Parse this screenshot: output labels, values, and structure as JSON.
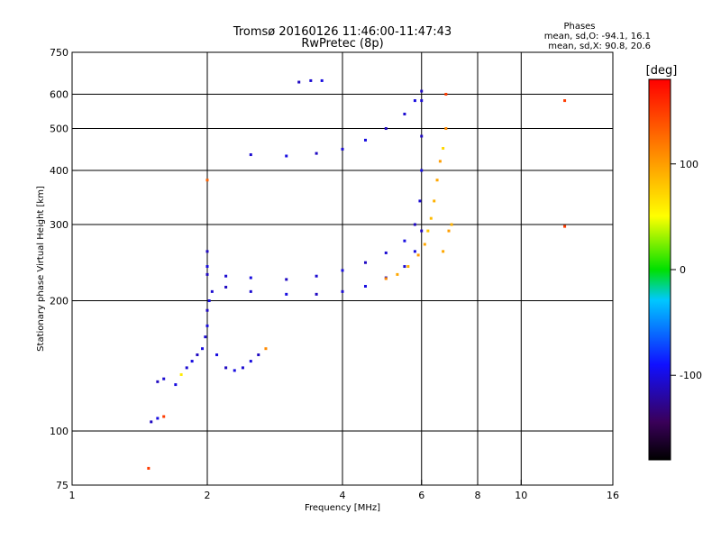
{
  "chart_data": {
    "type": "scatter",
    "title": "Tromsø 20160126 11:46:00-11:47:43",
    "subtitle": "RwPretec (8p)",
    "xlabel": "Frequency [MHz]",
    "ylabel": "Stationary phase Virtual Height [km]",
    "x_scale": "log",
    "y_scale": "log",
    "xlim": [
      1,
      16
    ],
    "ylim": [
      75,
      750
    ],
    "grid": true,
    "x_ticks": [
      "1",
      "2",
      "4",
      "6",
      "8",
      "10",
      "16"
    ],
    "x_tick_values": [
      1,
      2,
      4,
      6,
      8,
      10,
      16
    ],
    "x_grid_values": [
      2,
      4,
      6,
      8,
      10
    ],
    "y_ticks": [
      "750",
      "600",
      "500",
      "400",
      "300",
      "200",
      "100",
      "75"
    ],
    "y_tick_values": [
      750,
      600,
      500,
      400,
      300,
      200,
      100,
      75
    ],
    "y_grid_values": [
      600,
      500,
      400,
      300,
      200,
      100
    ],
    "phase_stats_title": "Phases",
    "phase_stats_O": "mean, sd,O: -94.1, 16.1",
    "phase_stats_X": "mean, sd,X:  90.8, 20.6",
    "colorbar": {
      "label": "[deg]",
      "range": [
        -180,
        180
      ],
      "tick_labels": [
        "100",
        "0",
        "-100"
      ],
      "tick_values": [
        100,
        0,
        -100
      ]
    },
    "series": [
      {
        "values": [
          [
            1.5,
            105,
            -110
          ],
          [
            1.55,
            107,
            -100
          ],
          [
            1.6,
            108,
            150
          ],
          [
            1.48,
            82,
            150
          ],
          [
            1.55,
            130,
            -110
          ],
          [
            1.6,
            132,
            -105
          ],
          [
            1.7,
            128,
            -100
          ],
          [
            1.75,
            135,
            60
          ],
          [
            1.8,
            140,
            -105
          ],
          [
            1.85,
            145,
            -100
          ],
          [
            1.9,
            150,
            -110
          ],
          [
            1.95,
            155,
            -100
          ],
          [
            1.98,
            165,
            -105
          ],
          [
            2.0,
            175,
            -100
          ],
          [
            2.0,
            190,
            -110
          ],
          [
            2.02,
            200,
            -100
          ],
          [
            2.05,
            210,
            -105
          ],
          [
            2.1,
            150,
            -100
          ],
          [
            2.2,
            140,
            -110
          ],
          [
            2.3,
            138,
            -100
          ],
          [
            2.4,
            140,
            -105
          ],
          [
            2.5,
            145,
            -100
          ],
          [
            2.6,
            150,
            -110
          ],
          [
            2.7,
            155,
            110
          ],
          [
            2.0,
            380,
            130
          ],
          [
            2.0,
            260,
            -110
          ],
          [
            2.0,
            240,
            -100
          ],
          [
            2.0,
            230,
            -110
          ],
          [
            2.2,
            228,
            -105
          ],
          [
            2.5,
            226,
            -100
          ],
          [
            3.0,
            224,
            -110
          ],
          [
            3.5,
            228,
            -105
          ],
          [
            4.0,
            235,
            -100
          ],
          [
            4.5,
            245,
            -110
          ],
          [
            5.0,
            258,
            -105
          ],
          [
            5.5,
            275,
            -100
          ],
          [
            5.8,
            300,
            -110
          ],
          [
            5.95,
            340,
            -105
          ],
          [
            6.0,
            400,
            -100
          ],
          [
            6.0,
            480,
            -110
          ],
          [
            6.0,
            580,
            -105
          ],
          [
            2.2,
            215,
            -110
          ],
          [
            2.5,
            210,
            -105
          ],
          [
            3.0,
            207,
            -100
          ],
          [
            3.5,
            207,
            -110
          ],
          [
            4.0,
            210,
            -105
          ],
          [
            4.5,
            216,
            -100
          ],
          [
            5.0,
            226,
            -110
          ],
          [
            5.5,
            240,
            -105
          ],
          [
            5.8,
            260,
            -100
          ],
          [
            6.0,
            290,
            -110
          ],
          [
            2.5,
            435,
            -105
          ],
          [
            3.0,
            432,
            -100
          ],
          [
            3.5,
            438,
            -110
          ],
          [
            4.0,
            448,
            -105
          ],
          [
            4.5,
            470,
            -100
          ],
          [
            5.0,
            500,
            -110
          ],
          [
            5.5,
            540,
            -105
          ],
          [
            5.8,
            580,
            -100
          ],
          [
            6.0,
            610,
            -110
          ],
          [
            3.2,
            640,
            -110
          ],
          [
            3.4,
            645,
            -105
          ],
          [
            3.6,
            645,
            -100
          ]
        ]
      },
      {
        "values": [
          [
            5.0,
            225,
            110
          ],
          [
            5.3,
            230,
            95
          ],
          [
            5.6,
            240,
            90
          ],
          [
            5.9,
            255,
            100
          ],
          [
            6.1,
            270,
            95
          ],
          [
            6.2,
            290,
            80
          ],
          [
            6.3,
            310,
            85
          ],
          [
            6.4,
            340,
            90
          ],
          [
            6.5,
            380,
            95
          ],
          [
            6.6,
            420,
            100
          ],
          [
            6.7,
            450,
            70
          ],
          [
            6.8,
            500,
            110
          ],
          [
            6.9,
            290,
            100
          ],
          [
            7.0,
            300,
            90
          ],
          [
            6.7,
            260,
            95
          ],
          [
            6.8,
            600,
            150
          ],
          [
            12.5,
            580,
            150
          ],
          [
            12.5,
            297,
            150
          ]
        ]
      }
    ]
  }
}
